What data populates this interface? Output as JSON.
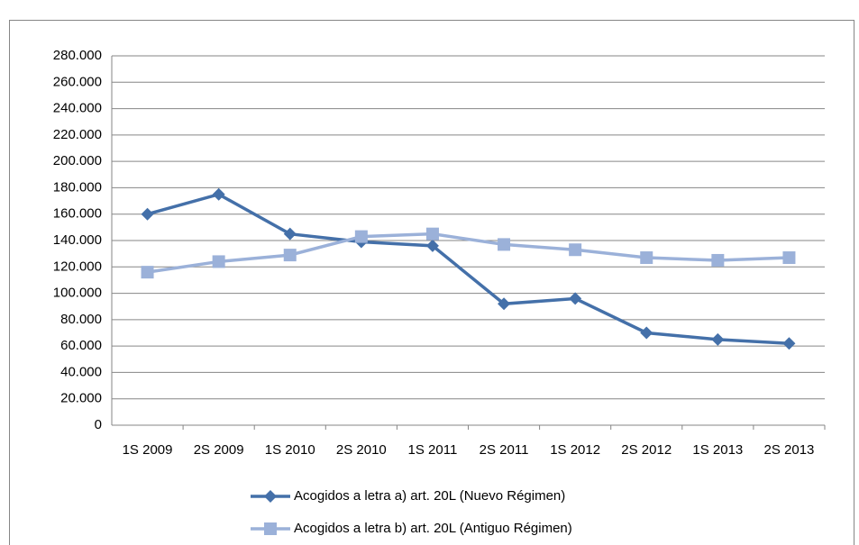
{
  "chart_data": {
    "type": "line",
    "categories": [
      "1S 2009",
      "2S 2009",
      "1S 2010",
      "2S 2010",
      "1S 2011",
      "2S 2011",
      "1S 2012",
      "2S 2012",
      "1S 2013",
      "2S 2013"
    ],
    "series": [
      {
        "name": "Acogidos a letra a) art. 20L (Nuevo Régimen)",
        "color": "#4470a9",
        "marker": "diamond",
        "values": [
          160000,
          175000,
          145000,
          139000,
          136000,
          92000,
          96000,
          70000,
          65000,
          62000
        ]
      },
      {
        "name": "Acogidos a letra b) art. 20L (Antiguo Régimen)",
        "color": "#9bb1d9",
        "marker": "square",
        "values": [
          116000,
          124000,
          129000,
          143000,
          145000,
          137000,
          133000,
          127000,
          125000,
          127000
        ]
      }
    ],
    "ylim": [
      0,
      280000
    ],
    "yticks": [
      0,
      {
        "value": 20000,
        "label": "20.000"
      },
      {
        "value": 40000,
        "label": "40.000"
      },
      {
        "value": 60000,
        "label": "60.000"
      },
      {
        "value": 80000,
        "label": "80.000"
      },
      {
        "value": 100000,
        "label": "100.000"
      },
      {
        "value": 120000,
        "label": "120.000"
      },
      {
        "value": 140000,
        "label": "140.000"
      },
      {
        "value": 160000,
        "label": "160.000"
      },
      {
        "value": 180000,
        "label": "180.000"
      },
      {
        "value": 200000,
        "label": "200.000"
      },
      {
        "value": 220000,
        "label": "220.000"
      },
      {
        "value": 240000,
        "label": "240.000"
      },
      {
        "value": 260000,
        "label": "260.000"
      },
      {
        "value": 280000,
        "label": "280.000"
      }
    ],
    "grid": true,
    "legend": "bottom"
  }
}
